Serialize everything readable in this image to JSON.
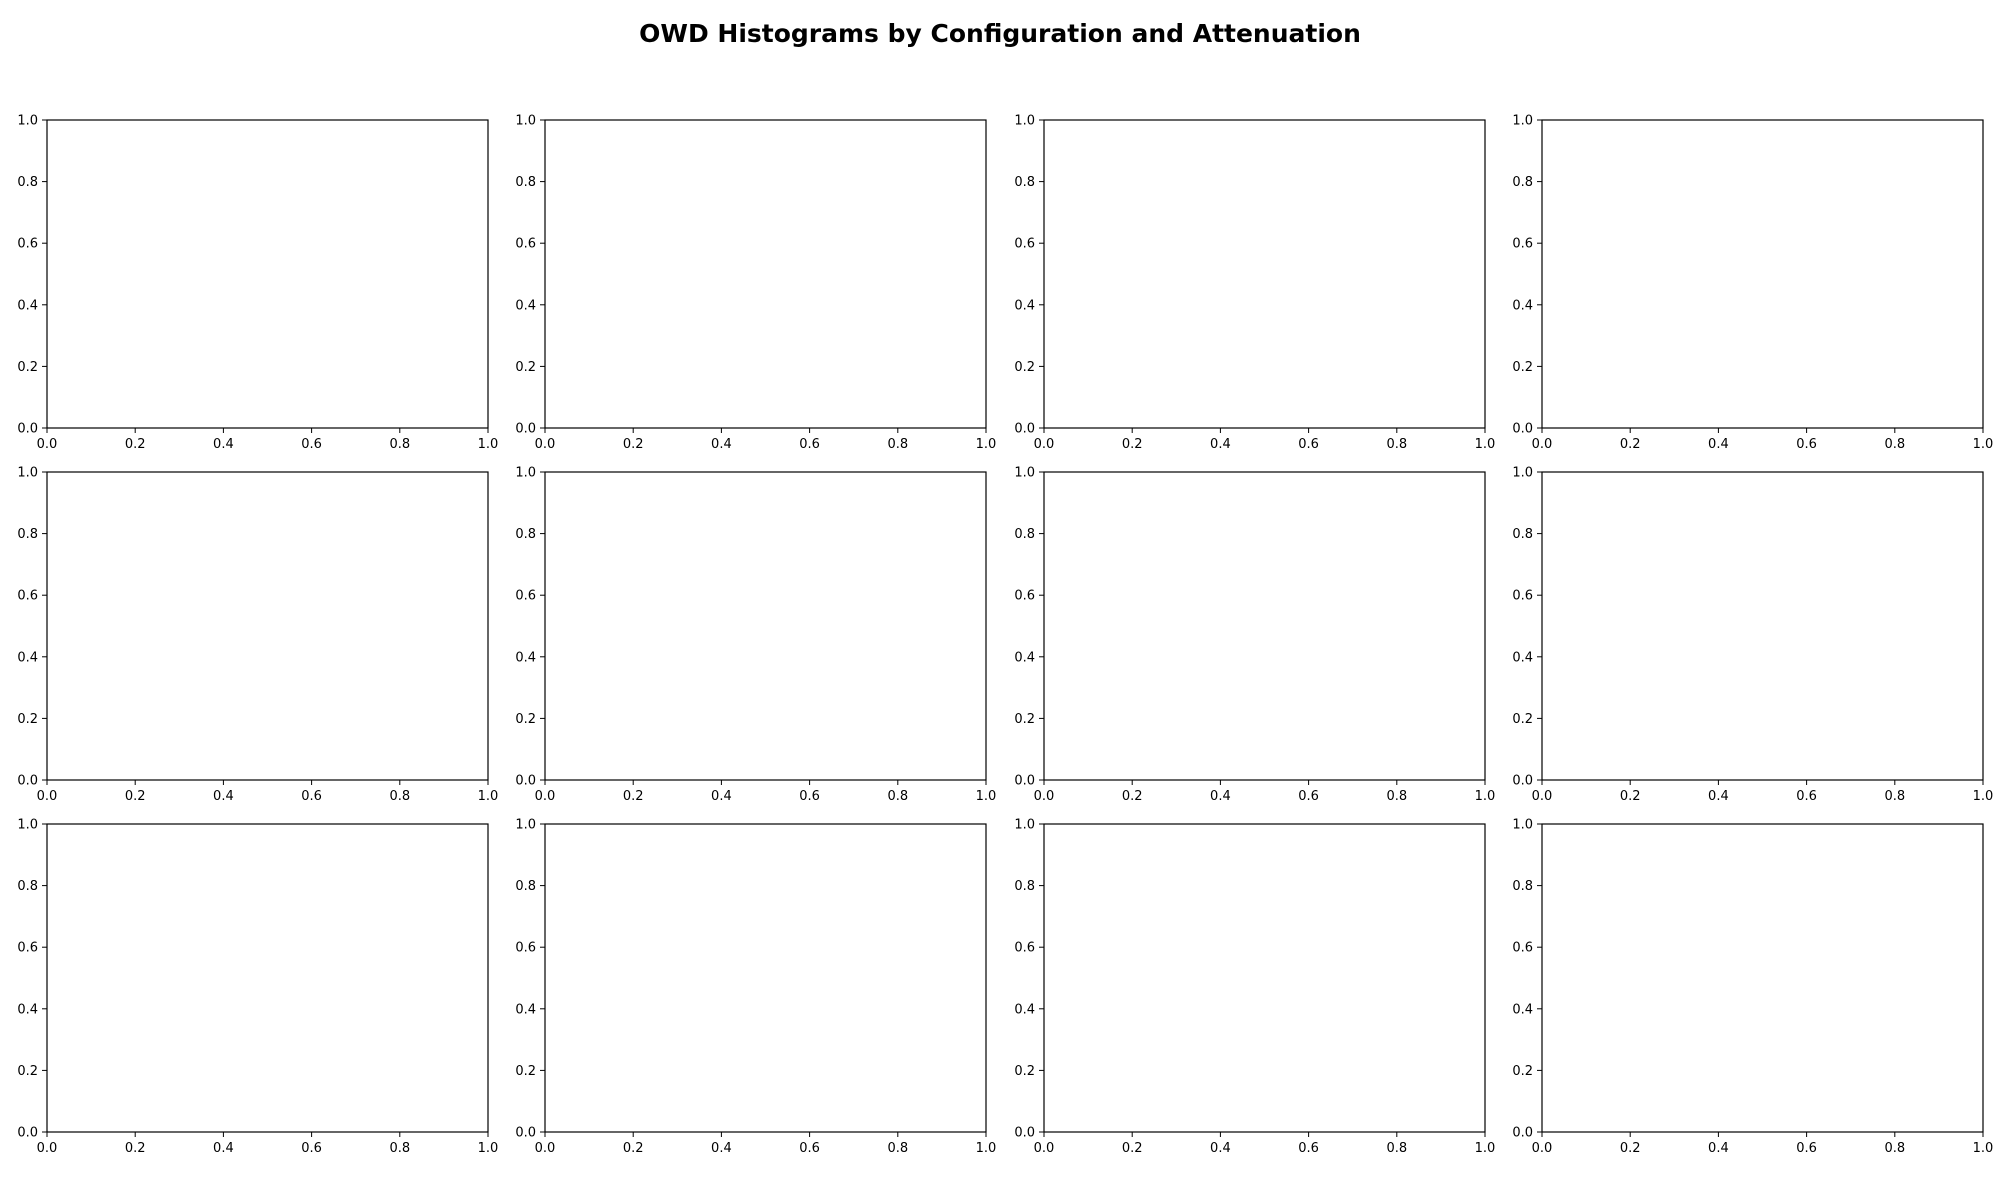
{
  "title": "OWD Histograms by Configuration and Attenuation",
  "chart_data": {
    "type": "bar",
    "title": "OWD Histograms by Configuration and Attenuation",
    "grid": false,
    "legend": "none",
    "rows": 3,
    "cols": 4,
    "panels": [
      {
        "xlim": [
          0,
          1
        ],
        "ylim": [
          0,
          1
        ],
        "xticks": [
          "0.0",
          "0.2",
          "0.4",
          "0.6",
          "0.8",
          "1.0"
        ],
        "yticks": [
          "0.0",
          "0.2",
          "0.4",
          "0.6",
          "0.8",
          "1.0"
        ],
        "values": []
      },
      {
        "xlim": [
          0,
          1
        ],
        "ylim": [
          0,
          1
        ],
        "xticks": [
          "0.0",
          "0.2",
          "0.4",
          "0.6",
          "0.8",
          "1.0"
        ],
        "yticks": [
          "0.0",
          "0.2",
          "0.4",
          "0.6",
          "0.8",
          "1.0"
        ],
        "values": []
      },
      {
        "xlim": [
          0,
          1
        ],
        "ylim": [
          0,
          1
        ],
        "xticks": [
          "0.0",
          "0.2",
          "0.4",
          "0.6",
          "0.8",
          "1.0"
        ],
        "yticks": [
          "0.0",
          "0.2",
          "0.4",
          "0.6",
          "0.8",
          "1.0"
        ],
        "values": []
      },
      {
        "xlim": [
          0,
          1
        ],
        "ylim": [
          0,
          1
        ],
        "xticks": [
          "0.0",
          "0.2",
          "0.4",
          "0.6",
          "0.8",
          "1.0"
        ],
        "yticks": [
          "0.0",
          "0.2",
          "0.4",
          "0.6",
          "0.8",
          "1.0"
        ],
        "values": []
      },
      {
        "xlim": [
          0,
          1
        ],
        "ylim": [
          0,
          1
        ],
        "xticks": [
          "0.0",
          "0.2",
          "0.4",
          "0.6",
          "0.8",
          "1.0"
        ],
        "yticks": [
          "0.0",
          "0.2",
          "0.4",
          "0.6",
          "0.8",
          "1.0"
        ],
        "values": []
      },
      {
        "xlim": [
          0,
          1
        ],
        "ylim": [
          0,
          1
        ],
        "xticks": [
          "0.0",
          "0.2",
          "0.4",
          "0.6",
          "0.8",
          "1.0"
        ],
        "yticks": [
          "0.0",
          "0.2",
          "0.4",
          "0.6",
          "0.8",
          "1.0"
        ],
        "values": []
      },
      {
        "xlim": [
          0,
          1
        ],
        "ylim": [
          0,
          1
        ],
        "xticks": [
          "0.0",
          "0.2",
          "0.4",
          "0.6",
          "0.8",
          "1.0"
        ],
        "yticks": [
          "0.0",
          "0.2",
          "0.4",
          "0.6",
          "0.8",
          "1.0"
        ],
        "values": []
      },
      {
        "xlim": [
          0,
          1
        ],
        "ylim": [
          0,
          1
        ],
        "xticks": [
          "0.0",
          "0.2",
          "0.4",
          "0.6",
          "0.8",
          "1.0"
        ],
        "yticks": [
          "0.0",
          "0.2",
          "0.4",
          "0.6",
          "0.8",
          "1.0"
        ],
        "values": []
      },
      {
        "xlim": [
          0,
          1
        ],
        "ylim": [
          0,
          1
        ],
        "xticks": [
          "0.0",
          "0.2",
          "0.4",
          "0.6",
          "0.8",
          "1.0"
        ],
        "yticks": [
          "0.0",
          "0.2",
          "0.4",
          "0.6",
          "0.8",
          "1.0"
        ],
        "values": []
      },
      {
        "xlim": [
          0,
          1
        ],
        "ylim": [
          0,
          1
        ],
        "xticks": [
          "0.0",
          "0.2",
          "0.4",
          "0.6",
          "0.8",
          "1.0"
        ],
        "yticks": [
          "0.0",
          "0.2",
          "0.4",
          "0.6",
          "0.8",
          "1.0"
        ],
        "values": []
      },
      {
        "xlim": [
          0,
          1
        ],
        "ylim": [
          0,
          1
        ],
        "xticks": [
          "0.0",
          "0.2",
          "0.4",
          "0.6",
          "0.8",
          "1.0"
        ],
        "yticks": [
          "0.0",
          "0.2",
          "0.4",
          "0.6",
          "0.8",
          "1.0"
        ],
        "values": []
      },
      {
        "xlim": [
          0,
          1
        ],
        "ylim": [
          0,
          1
        ],
        "xticks": [
          "0.0",
          "0.2",
          "0.4",
          "0.6",
          "0.8",
          "1.0"
        ],
        "yticks": [
          "0.0",
          "0.2",
          "0.4",
          "0.6",
          "0.8",
          "1.0"
        ],
        "values": []
      }
    ]
  }
}
